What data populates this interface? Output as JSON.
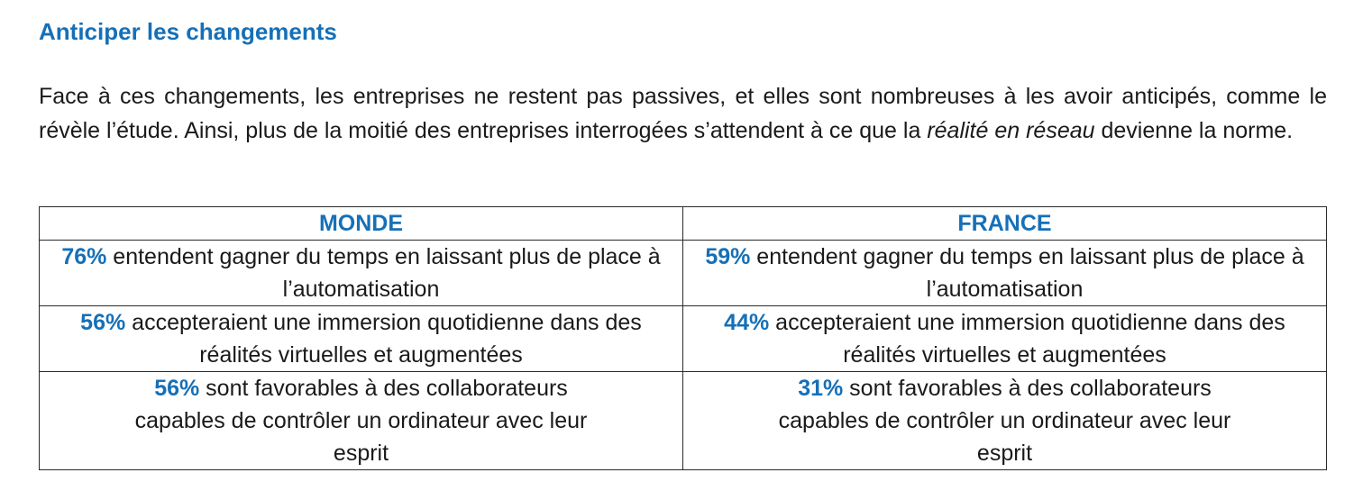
{
  "section": {
    "title": "Anticiper les changements"
  },
  "intro": {
    "part1": "Face à ces changements, les entreprises ne restent pas passives, et elles sont nombreuses à les avoir anticipés, comme le révèle l’étude. Ainsi, plus de la moitié des entreprises interrogées s’attendent à ce que la ",
    "emphasis": "réalité en réseau",
    "part2": " devienne la norme."
  },
  "table": {
    "headers": [
      "MONDE",
      "FRANCE"
    ],
    "rows": [
      {
        "monde": {
          "pct": "76%",
          "text": " entendent gagner du temps en laissant plus de place à l’automatisation"
        },
        "france": {
          "pct": "59%",
          "text": " entendent gagner du temps en laissant plus de place à l’automatisation"
        }
      },
      {
        "monde": {
          "pct": "56%",
          "text": " accepteraient une immersion quotidienne dans des réalités virtuelles et augmentées"
        },
        "france": {
          "pct": "44%",
          "text": " accepteraient une immersion quotidienne dans des réalités virtuelles et augmentées"
        }
      },
      {
        "monde": {
          "pct": "56%",
          "text": " sont favorables à des collaborateurs capables de contrôler un ordinateur avec leur esprit"
        },
        "france": {
          "pct": "31%",
          "text": " sont favorables à des collaborateurs capables de contrôler un ordinateur avec leur esprit"
        }
      }
    ]
  },
  "colors": {
    "accent": "#1570b8",
    "text": "#1a1a1a",
    "border": "#2a2a2a"
  }
}
